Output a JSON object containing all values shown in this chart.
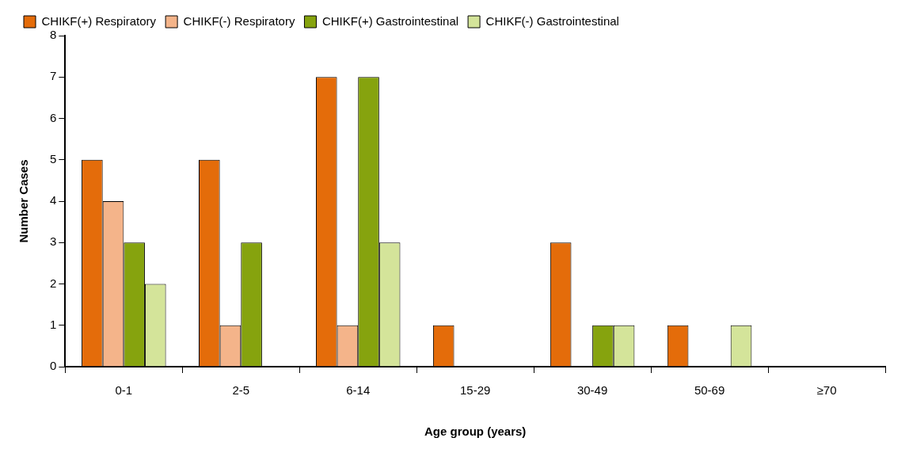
{
  "chart_data": {
    "type": "bar",
    "xlabel": "Age group (years)",
    "ylabel": "Number Cases",
    "categories": [
      "0-1",
      "2-5",
      "6-14",
      "15-29",
      "30-49",
      "50-69",
      "≥70"
    ],
    "series": [
      {
        "name": "CHIKF(+) Respiratory",
        "color": "#e46c0a",
        "values": [
          5,
          5,
          7,
          1,
          3,
          1,
          0
        ]
      },
      {
        "name": "CHIKF(-) Respiratory",
        "color": "#f4b48a",
        "values": [
          4,
          1,
          1,
          0,
          0,
          0,
          0
        ]
      },
      {
        "name": "CHIKF(+) Gastrointestinal",
        "color": "#86a30e",
        "values": [
          3,
          3,
          7,
          0,
          1,
          0,
          0
        ]
      },
      {
        "name": "CHIKF(-) Gastrointestinal",
        "color": "#d4e49a",
        "values": [
          2,
          0,
          3,
          0,
          1,
          1,
          0
        ]
      }
    ],
    "ylim": [
      0,
      8
    ],
    "yticks": [
      0,
      1,
      2,
      3,
      4,
      5,
      6,
      7,
      8
    ],
    "grid": false,
    "legend": "top left"
  }
}
